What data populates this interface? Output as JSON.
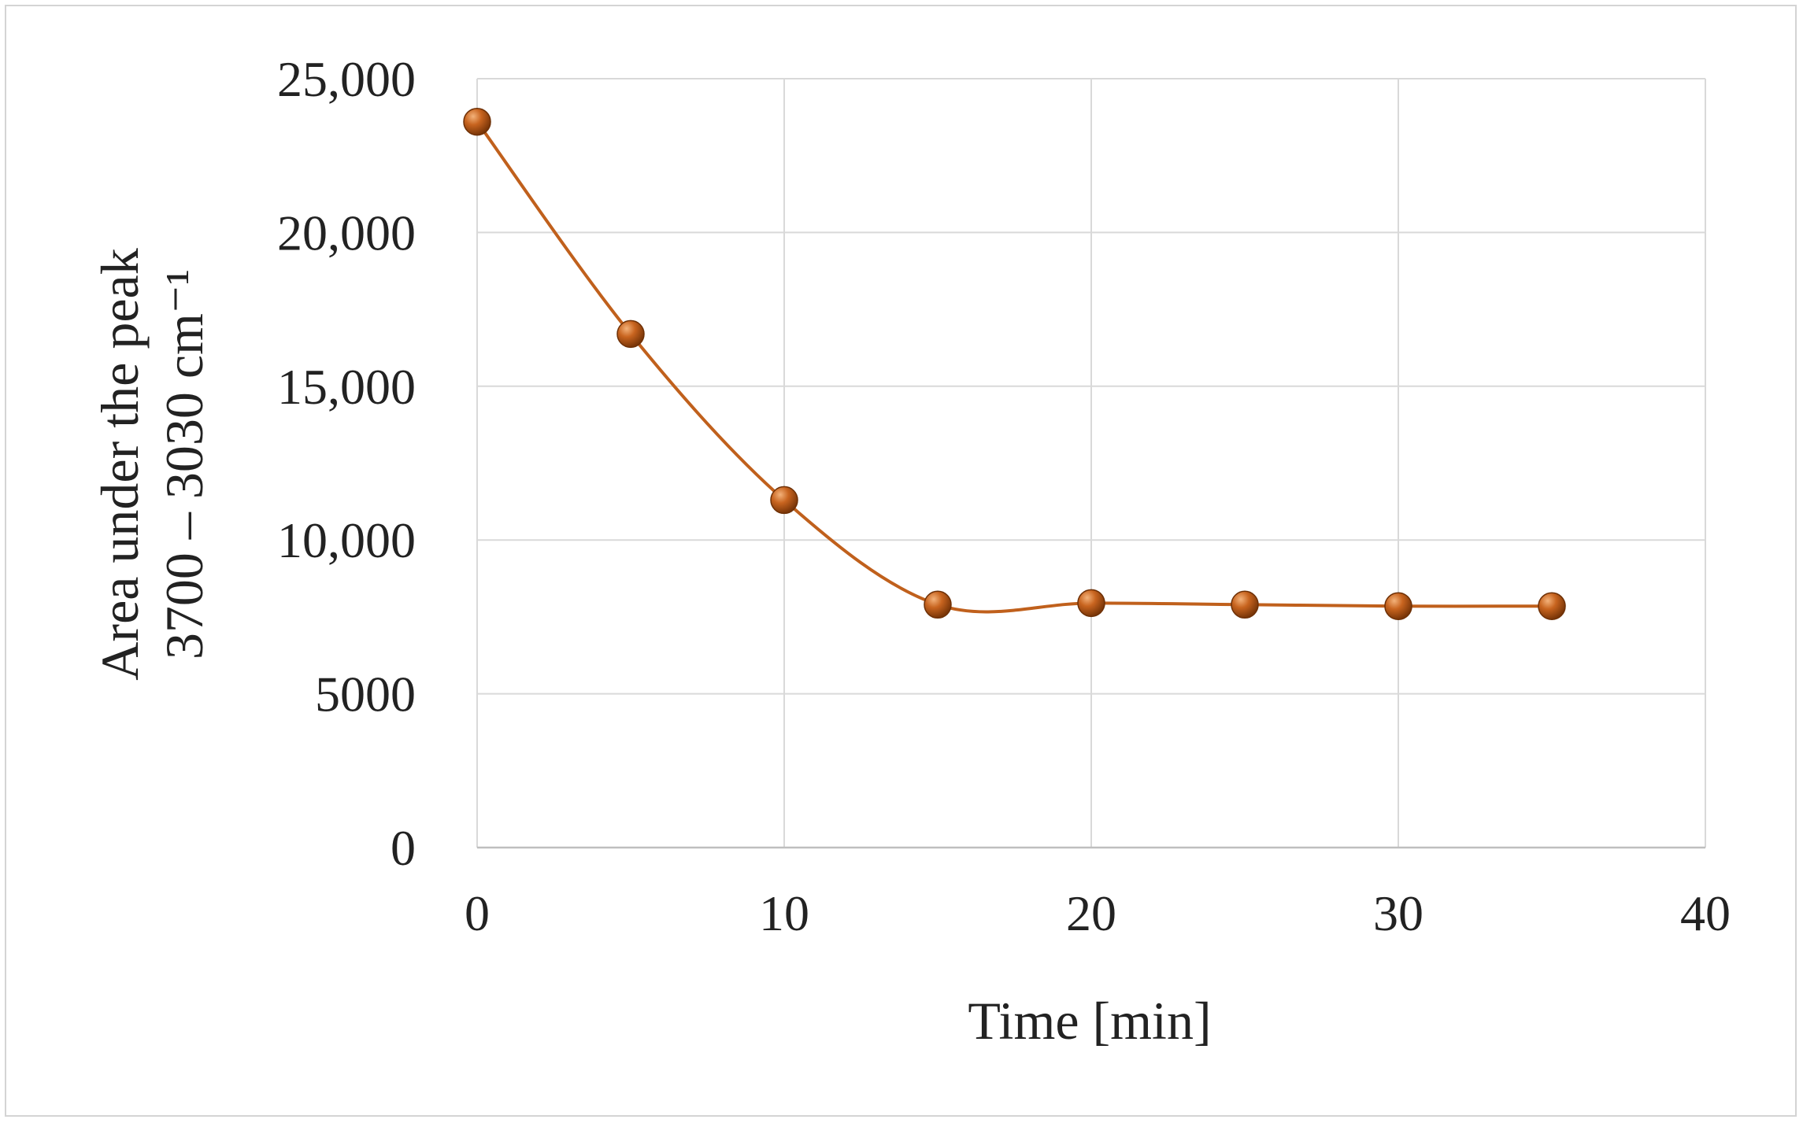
{
  "chart_data": {
    "type": "line",
    "title": "",
    "xlabel": "Time [min]",
    "ylabel_lines": [
      "Area under the peak",
      "3700 – 3030 cm⁻¹"
    ],
    "xlim": [
      0,
      40
    ],
    "ylim": [
      0,
      25000
    ],
    "xticks": [
      0,
      10,
      20,
      30,
      40
    ],
    "xtick_labels": [
      "0",
      "10",
      "20",
      "30",
      "40"
    ],
    "yticks": [
      0,
      5000,
      10000,
      15000,
      20000,
      25000
    ],
    "ytick_labels": [
      "0",
      "5000",
      "10,000",
      "15,000",
      "20,000",
      "25,000"
    ],
    "x_grid": [
      0,
      10,
      20,
      30,
      40
    ],
    "y_grid": [
      5000,
      10000,
      15000,
      20000,
      25000
    ],
    "grid": true,
    "smoothed": true,
    "legend": "none",
    "series": [
      {
        "name": "",
        "color": "#c0601c",
        "marker_color": "#b5520f",
        "x": [
          0,
          5,
          10,
          15,
          20,
          25,
          30,
          35
        ],
        "y": [
          23600,
          16700,
          11300,
          7900,
          7950,
          7900,
          7850,
          7850
        ]
      }
    ]
  },
  "colors": {
    "grid": "#d9d9d9",
    "axis": "#bfbfbf",
    "frame": "#d4d4d4",
    "text": "#222222"
  }
}
